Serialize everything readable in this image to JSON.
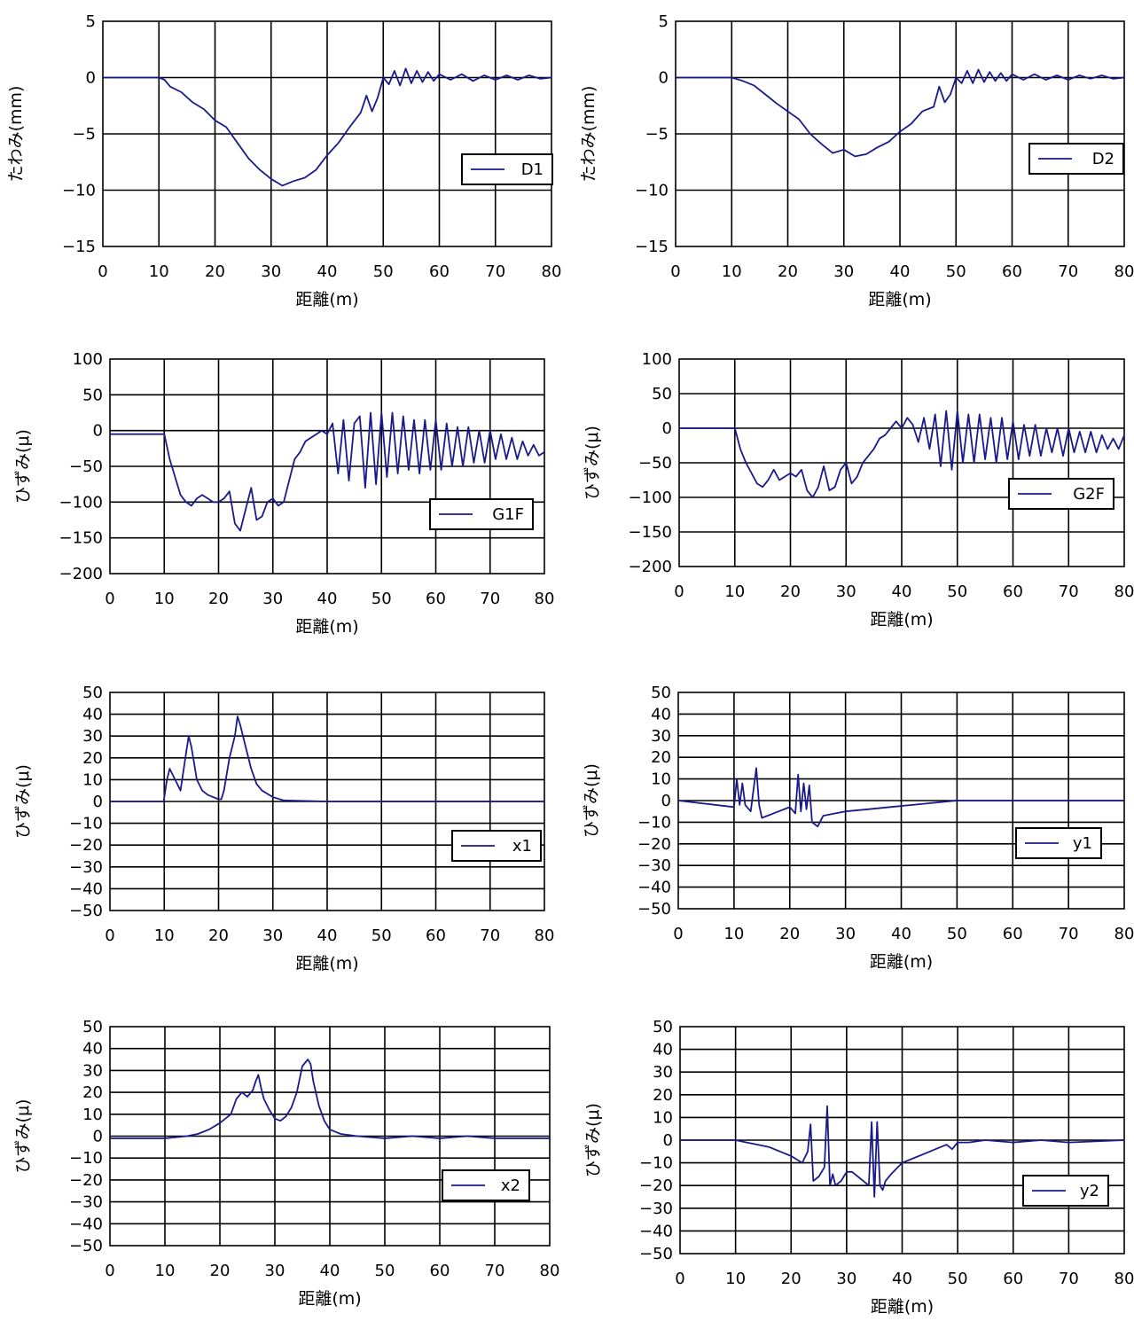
{
  "colors": {
    "series": "#1a1a8c",
    "grid": "#000000",
    "background": "#ffffff"
  },
  "chart_data": [
    {
      "type": "line",
      "ylabel": "たわみ(mm)",
      "xlabel": "距離(m)",
      "xlim": [
        0,
        80
      ],
      "xticks": [
        0,
        10,
        20,
        30,
        40,
        50,
        60,
        70,
        80
      ],
      "ylim": [
        -15,
        5
      ],
      "yticks": [
        5,
        0,
        -5,
        -10,
        -15
      ],
      "legend": "right",
      "series": [
        {
          "name": "D1",
          "x": [
            0,
            10,
            11,
            12,
            14,
            16,
            18,
            20,
            22,
            24,
            26,
            28,
            30,
            32,
            34,
            36,
            38,
            40,
            42,
            44,
            46,
            47,
            48,
            49,
            50,
            51,
            52,
            53,
            54,
            55,
            56,
            57,
            58,
            59,
            60,
            62,
            64,
            66,
            68,
            70,
            72,
            74,
            76,
            78,
            80
          ],
          "y": [
            0,
            0,
            -0.2,
            -0.8,
            -1.3,
            -2.2,
            -2.8,
            -3.8,
            -4.4,
            -5.8,
            -7.2,
            -8.2,
            -9.0,
            -9.6,
            -9.2,
            -8.9,
            -8.2,
            -6.9,
            -5.8,
            -4.4,
            -3.1,
            -1.6,
            -3.0,
            -1.8,
            0,
            -0.6,
            0.6,
            -0.7,
            0.8,
            -0.5,
            0.6,
            -0.4,
            0.5,
            -0.3,
            0.3,
            -0.2,
            0.3,
            -0.3,
            0.2,
            -0.2,
            0.2,
            -0.2,
            0.2,
            -0.1,
            0
          ]
        }
      ]
    },
    {
      "type": "line",
      "ylabel": "たわみ(mm)",
      "xlabel": "距離(m)",
      "xlim": [
        0,
        80
      ],
      "xticks": [
        0,
        10,
        20,
        30,
        40,
        50,
        60,
        70,
        80
      ],
      "ylim": [
        -15,
        5
      ],
      "yticks": [
        5,
        0,
        -5,
        -10,
        -15
      ],
      "legend": "right",
      "series": [
        {
          "name": "D2",
          "x": [
            0,
            10,
            12,
            14,
            16,
            18,
            20,
            22,
            24,
            26,
            28,
            30,
            32,
            34,
            36,
            38,
            40,
            42,
            44,
            46,
            47,
            48,
            49,
            50,
            51,
            52,
            53,
            54,
            55,
            56,
            57,
            58,
            59,
            60,
            62,
            64,
            66,
            68,
            70,
            72,
            74,
            76,
            78,
            80
          ],
          "y": [
            0,
            0,
            -0.3,
            -0.7,
            -1.5,
            -2.3,
            -3.0,
            -3.7,
            -5.0,
            -5.9,
            -6.7,
            -6.4,
            -7.0,
            -6.8,
            -6.2,
            -5.7,
            -4.8,
            -4.1,
            -3.0,
            -2.6,
            -0.8,
            -2.2,
            -1.5,
            0,
            -0.5,
            0.6,
            -0.5,
            0.7,
            -0.4,
            0.5,
            -0.3,
            0.4,
            -0.3,
            0.3,
            -0.2,
            0.3,
            -0.2,
            0.2,
            -0.2,
            0.2,
            -0.1,
            0.2,
            -0.1,
            0
          ]
        }
      ]
    },
    {
      "type": "line",
      "ylabel": "ひずみ(μ)",
      "xlabel": "距離(m)",
      "xlim": [
        0,
        80
      ],
      "xticks": [
        0,
        10,
        20,
        30,
        40,
        50,
        60,
        70,
        80
      ],
      "ylim": [
        -200,
        100
      ],
      "yticks": [
        100,
        50,
        0,
        -50,
        -100,
        -150,
        -200
      ],
      "legend": "right",
      "series": [
        {
          "name": "G1F",
          "x": [
            0,
            10,
            11,
            12,
            13,
            14,
            15,
            16,
            17,
            18,
            19,
            20,
            21,
            22,
            23,
            24,
            25,
            26,
            27,
            28,
            29,
            30,
            31,
            32,
            33,
            34,
            35,
            36,
            37,
            38,
            39,
            40,
            41,
            42,
            43,
            44,
            45,
            46,
            47,
            48,
            49,
            50,
            51,
            52,
            53,
            54,
            55,
            56,
            57,
            58,
            59,
            60,
            61,
            62,
            63,
            64,
            65,
            66,
            67,
            68,
            69,
            70,
            71,
            72,
            73,
            74,
            75,
            76,
            77,
            78,
            79,
            80
          ],
          "y": [
            -5,
            -5,
            -40,
            -65,
            -90,
            -100,
            -105,
            -95,
            -90,
            -95,
            -100,
            -100,
            -95,
            -85,
            -130,
            -140,
            -110,
            -80,
            -125,
            -120,
            -100,
            -95,
            -105,
            -100,
            -70,
            -40,
            -30,
            -15,
            -10,
            -5,
            0,
            -5,
            10,
            -60,
            15,
            -70,
            10,
            20,
            -80,
            25,
            -75,
            25,
            -65,
            25,
            -60,
            20,
            -55,
            15,
            -60,
            15,
            -55,
            15,
            -55,
            10,
            -50,
            5,
            -50,
            5,
            -45,
            0,
            -45,
            0,
            -40,
            -5,
            -40,
            -10,
            -40,
            -15,
            -35,
            -20,
            -35,
            -30
          ]
        }
      ]
    },
    {
      "type": "line",
      "ylabel": "ひずみ(μ)",
      "xlabel": "距離(m)",
      "xlim": [
        0,
        80
      ],
      "xticks": [
        0,
        10,
        20,
        30,
        40,
        50,
        60,
        70,
        80
      ],
      "ylim": [
        -200,
        100
      ],
      "yticks": [
        100,
        50,
        0,
        -50,
        -100,
        -150,
        -200
      ],
      "legend": "right",
      "series": [
        {
          "name": "G2F",
          "x": [
            0,
            10,
            11,
            12,
            13,
            14,
            15,
            16,
            17,
            18,
            19,
            20,
            21,
            22,
            23,
            24,
            25,
            26,
            27,
            28,
            29,
            30,
            31,
            32,
            33,
            34,
            35,
            36,
            37,
            38,
            39,
            40,
            41,
            42,
            43,
            44,
            45,
            46,
            47,
            48,
            49,
            50,
            51,
            52,
            53,
            54,
            55,
            56,
            57,
            58,
            59,
            60,
            61,
            62,
            63,
            64,
            65,
            66,
            67,
            68,
            69,
            70,
            71,
            72,
            73,
            74,
            75,
            76,
            77,
            78,
            79,
            80
          ],
          "y": [
            0,
            0,
            -30,
            -50,
            -65,
            -80,
            -85,
            -75,
            -60,
            -75,
            -70,
            -65,
            -70,
            -60,
            -90,
            -100,
            -85,
            -55,
            -90,
            -85,
            -60,
            -50,
            -80,
            -70,
            -50,
            -40,
            -30,
            -15,
            -10,
            0,
            10,
            0,
            15,
            5,
            -20,
            15,
            -30,
            20,
            -55,
            25,
            -60,
            25,
            -50,
            20,
            -50,
            20,
            -45,
            15,
            -50,
            15,
            -45,
            10,
            -45,
            5,
            -40,
            5,
            -40,
            0,
            -35,
            0,
            -40,
            0,
            -35,
            -5,
            -35,
            -5,
            -35,
            -10,
            -30,
            -15,
            -30,
            -10
          ]
        }
      ]
    },
    {
      "type": "line",
      "ylabel": "ひずみ(μ)",
      "xlabel": "距離(m)",
      "xlim": [
        0,
        80
      ],
      "xticks": [
        0,
        10,
        20,
        30,
        40,
        50,
        60,
        70,
        80
      ],
      "ylim": [
        -50,
        50
      ],
      "yticks": [
        50,
        40,
        30,
        20,
        10,
        0,
        -10,
        -20,
        -30,
        -40,
        -50
      ],
      "legend": "right",
      "series": [
        {
          "name": "x1",
          "x": [
            0,
            9.9,
            10.5,
            11,
            12,
            13,
            14,
            14.5,
            15,
            16,
            17,
            18,
            19,
            20,
            20.5,
            21,
            22,
            23,
            23.5,
            24,
            25,
            26,
            27,
            28,
            30,
            32,
            40,
            80
          ],
          "y": [
            0,
            0,
            10,
            15,
            10,
            5,
            22,
            30,
            25,
            10,
            5,
            3,
            2,
            1,
            1,
            5,
            20,
            30,
            39,
            35,
            25,
            15,
            8,
            5,
            2,
            0.5,
            0,
            0
          ]
        }
      ]
    },
    {
      "type": "line",
      "ylabel": "ひずみ(μ)",
      "xlabel": "距離(m)",
      "xlim": [
        0,
        80
      ],
      "xticks": [
        0,
        10,
        20,
        30,
        40,
        50,
        60,
        70,
        80
      ],
      "ylim": [
        -50,
        50
      ],
      "yticks": [
        50,
        40,
        30,
        20,
        10,
        0,
        -10,
        -20,
        -30,
        -40,
        -50
      ],
      "legend": "right",
      "series": [
        {
          "name": "y1",
          "x": [
            0,
            10,
            10.5,
            11,
            11.5,
            12,
            13,
            14,
            14.5,
            15,
            16,
            18,
            20,
            21,
            21.5,
            22,
            22.5,
            23,
            23.5,
            24,
            25,
            26,
            28,
            30,
            34,
            38,
            42,
            46,
            50,
            80
          ],
          "y": [
            0,
            -3,
            10,
            -2,
            8,
            -2,
            -5,
            15,
            -2,
            -8,
            -7,
            -5,
            -3,
            -6,
            12,
            -5,
            8,
            -4,
            7,
            -10,
            -12,
            -7,
            -6,
            -5,
            -4,
            -3,
            -2,
            -1,
            0,
            0
          ]
        }
      ]
    },
    {
      "type": "line",
      "ylabel": "ひずみ(μ)",
      "xlabel": "距離(m)",
      "xlim": [
        0,
        80
      ],
      "xticks": [
        0,
        10,
        20,
        30,
        40,
        50,
        60,
        70,
        80
      ],
      "ylim": [
        -50,
        50
      ],
      "yticks": [
        50,
        40,
        30,
        20,
        10,
        0,
        -10,
        -20,
        -30,
        -40,
        -50
      ],
      "legend": "right",
      "series": [
        {
          "name": "x2",
          "x": [
            0,
            10,
            14,
            16,
            18,
            20,
            22,
            23,
            24,
            25,
            26,
            26.5,
            27,
            27.5,
            28,
            29,
            30,
            31,
            32,
            33,
            34,
            35,
            36,
            36.5,
            37,
            38,
            39,
            40,
            42,
            45,
            50,
            55,
            60,
            65,
            70,
            80
          ],
          "y": [
            -1,
            -1,
            0,
            1,
            3,
            6,
            10,
            17,
            20,
            18,
            21,
            25,
            28,
            22,
            17,
            12,
            8,
            7,
            9,
            13,
            20,
            32,
            35,
            33,
            25,
            14,
            7,
            3,
            1,
            0,
            -1,
            0,
            -1,
            0,
            -1,
            -1
          ]
        }
      ]
    },
    {
      "type": "line",
      "ylabel": "ひずみ(μ)",
      "xlabel": "距離(m)",
      "xlim": [
        0,
        80
      ],
      "xticks": [
        0,
        10,
        20,
        30,
        40,
        50,
        60,
        70,
        80
      ],
      "ylim": [
        -50,
        50
      ],
      "yticks": [
        50,
        40,
        30,
        20,
        10,
        0,
        -10,
        -20,
        -30,
        -40,
        -50
      ],
      "legend": "right",
      "series": [
        {
          "name": "y2",
          "x": [
            0,
            10,
            12,
            14,
            16,
            18,
            20,
            22,
            23,
            23.5,
            24,
            25,
            26,
            26.5,
            27,
            27.5,
            28,
            29,
            30,
            31,
            32,
            33,
            34,
            34.5,
            35,
            35.5,
            36,
            36.5,
            37,
            38,
            40,
            42,
            44,
            46,
            48,
            49,
            50,
            52,
            55,
            60,
            65,
            70,
            80
          ],
          "y": [
            0,
            0,
            -1,
            -2,
            -3,
            -5,
            -7,
            -10,
            -5,
            7,
            -18,
            -16,
            -12,
            15,
            -20,
            -15,
            -20,
            -18,
            -14,
            -14,
            -16,
            -18,
            -20,
            8,
            -25,
            8,
            -20,
            -22,
            -18,
            -15,
            -10,
            -8,
            -6,
            -4,
            -2,
            -4,
            -1,
            -1,
            0,
            -1,
            0,
            -1,
            0
          ]
        }
      ]
    }
  ]
}
